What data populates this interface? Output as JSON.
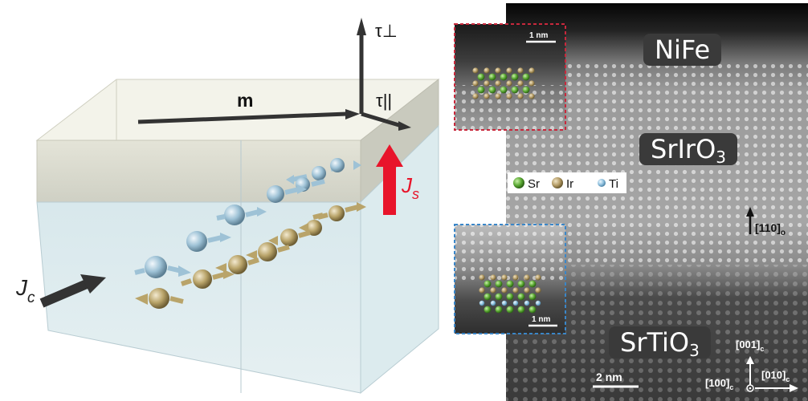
{
  "schematic": {
    "magnetization_label": "m",
    "torque_perp_label": "τ⊥",
    "torque_parallel_label": "τ||",
    "spin_current_label": "J",
    "spin_current_sub": "s",
    "charge_current_label": "J",
    "charge_current_sub": "c",
    "colors": {
      "spin_arrow": "#e8142a",
      "gold_atom": "#b9a46a",
      "blue_atom": "#9ec2d6",
      "arrow_dark": "#333333"
    }
  },
  "stem": {
    "layer_nife": "NiFe",
    "layer_srio_base": "SrIrO",
    "layer_srio_sub": "3",
    "layer_sto_base": "SrTiO",
    "layer_sto_sub": "3",
    "legend": {
      "sr": "Sr",
      "ir": "Ir",
      "ti": "Ti"
    },
    "inset_scale": "1 nm",
    "main_scale": "2 nm",
    "dir_110_text": "[110]",
    "dir_110_sub": "o",
    "dir_001_text": "[001]",
    "dir_001_sub": "c",
    "dir_100_text": "[100]",
    "dir_100_sub": "c",
    "dir_010_text": "[010]",
    "dir_010_sub": "c",
    "colors": {
      "sr": "#5aa832",
      "ir": "#b39a64",
      "ti": "#8fc0de",
      "inset_top_border": "#c8283c",
      "inset_bottom_border": "#3a86c8"
    }
  }
}
